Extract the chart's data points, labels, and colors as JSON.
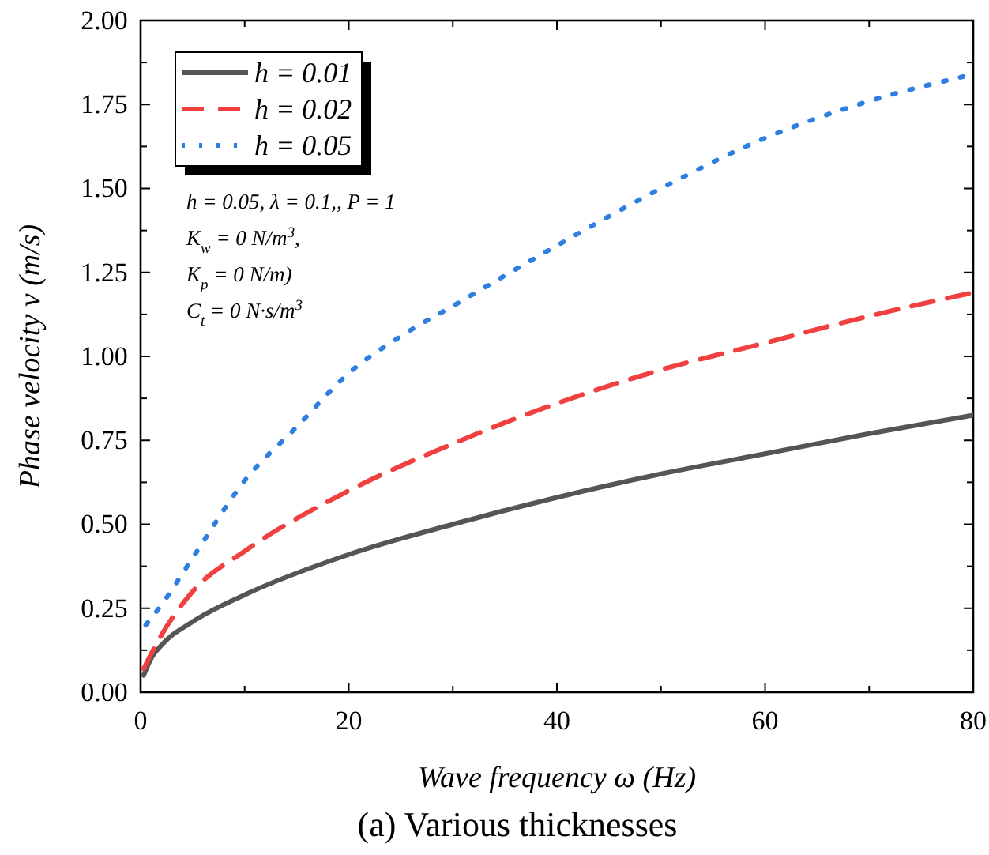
{
  "chart_data": {
    "type": "line",
    "title": "(a) Various  thicknesses",
    "xlabel": "Wave frequency ω (Hz)",
    "ylabel": "Phase velocity v (m/s)",
    "xlim": [
      0,
      80
    ],
    "ylim": [
      0,
      2
    ],
    "xticks": [
      0,
      {
        "value": 10,
        "label": null
      },
      20,
      {
        "value": 30,
        "label": null
      },
      40,
      {
        "value": 50,
        "label": null
      },
      60,
      {
        "value": 70,
        "label": null
      },
      80
    ],
    "yticks": [
      {
        "value": 0,
        "label": "0.00"
      },
      {
        "value": 0.125,
        "label": null
      },
      {
        "value": 0.25,
        "label": "0.25"
      },
      {
        "value": 0.375,
        "label": null
      },
      {
        "value": 0.5,
        "label": "0.50"
      },
      {
        "value": 0.625,
        "label": null
      },
      {
        "value": 0.75,
        "label": "0.75"
      },
      {
        "value": 0.875,
        "label": null
      },
      {
        "value": 1,
        "label": "1.00"
      },
      {
        "value": 1.125,
        "label": null
      },
      {
        "value": 1.25,
        "label": "1.25"
      },
      {
        "value": 1.375,
        "label": null
      },
      {
        "value": 1.5,
        "label": "1.50"
      },
      {
        "value": 1.625,
        "label": null
      },
      {
        "value": 1.75,
        "label": "1.75"
      },
      {
        "value": 1.875,
        "label": null
      },
      {
        "value": 2,
        "label": "2.00"
      }
    ],
    "grid": false,
    "legend": "top left",
    "marker": "none",
    "annotations": [
      "h = 0.05, λ = 0.1,, P = 1",
      "K$_{w}$ = 0 N/m$^{3}$,",
      "K$_{p}$ = 0 N/m)",
      "C$_{t}$ = 0 N·s/m$^{3}$"
    ],
    "series": [
      {
        "name": "h = 0.01",
        "color": "#555555",
        "line_style": "solid",
        "x": [
          0.3,
          1,
          2,
          5,
          10,
          20,
          30,
          40,
          50,
          60,
          70,
          80
        ],
        "values": [
          0.05,
          0.1,
          0.14,
          0.21,
          0.29,
          0.41,
          0.5,
          0.58,
          0.65,
          0.71,
          0.77,
          0.825
        ]
      },
      {
        "name": "h = 0.02",
        "color": "#f04040",
        "line_style": "dashed",
        "x": [
          0.3,
          2,
          5,
          10,
          20,
          30,
          40,
          50,
          60,
          70,
          80
        ],
        "values": [
          0.07,
          0.17,
          0.3,
          0.42,
          0.6,
          0.74,
          0.86,
          0.96,
          1.04,
          1.12,
          1.19
        ]
      },
      {
        "name": "h = 0.05",
        "color": "#2f7fe0",
        "line_style": "dotted",
        "x": [
          0.5,
          2,
          5,
          10,
          15,
          20,
          25,
          30,
          40,
          50,
          60,
          70,
          80
        ],
        "values": [
          0.2,
          0.26,
          0.4,
          0.63,
          0.79,
          0.95,
          1.06,
          1.15,
          1.33,
          1.5,
          1.65,
          1.76,
          1.84
        ]
      }
    ]
  }
}
